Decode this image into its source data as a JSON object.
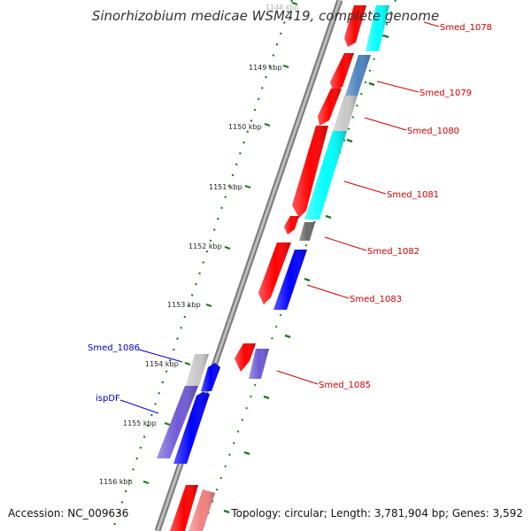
{
  "title": "Sinorhizobium medicae WSM419, complete genome",
  "footer": {
    "accession": "Accession: NC_009636",
    "topology": "Topology: circular; Length: 3,781,904 bp; Genes: 3,592"
  },
  "ruler": {
    "ticks": [
      "1148 kbp",
      "1149 kbp",
      "1150 kbp",
      "1151 kbp",
      "1152 kbp",
      "1153 kbp",
      "1154 kbp",
      "1155 kbp",
      "1156 kbp"
    ]
  },
  "colors": {
    "red_cds": "#ff0000",
    "cyan_cds": "#00ffff",
    "blue_cds": "#0000ff",
    "steelblue_cds": "#4f83c0",
    "purple_cds": "#6f5ad6",
    "grey_cds": "#c8c8c8",
    "darkgrey_cds": "#6a6a6a",
    "pink_cds": "#f08080",
    "label_red": "#cc0000",
    "label_blue": "#0000cc",
    "ruler_green": "#1e7a1e",
    "backbone": "#8c8c8c"
  },
  "gene_labels": [
    {
      "text": "Smed_1078",
      "color": "red"
    },
    {
      "text": "Smed_1079",
      "color": "red"
    },
    {
      "text": "Smed_1080",
      "color": "red"
    },
    {
      "text": "Smed_1081",
      "color": "red"
    },
    {
      "text": "Smed_1082",
      "color": "red"
    },
    {
      "text": "Smed_1083",
      "color": "red"
    },
    {
      "text": "Smed_1085",
      "color": "red"
    },
    {
      "text": "Smed_1086",
      "color": "blue"
    },
    {
      "text": "ispDF",
      "color": "blue"
    }
  ]
}
